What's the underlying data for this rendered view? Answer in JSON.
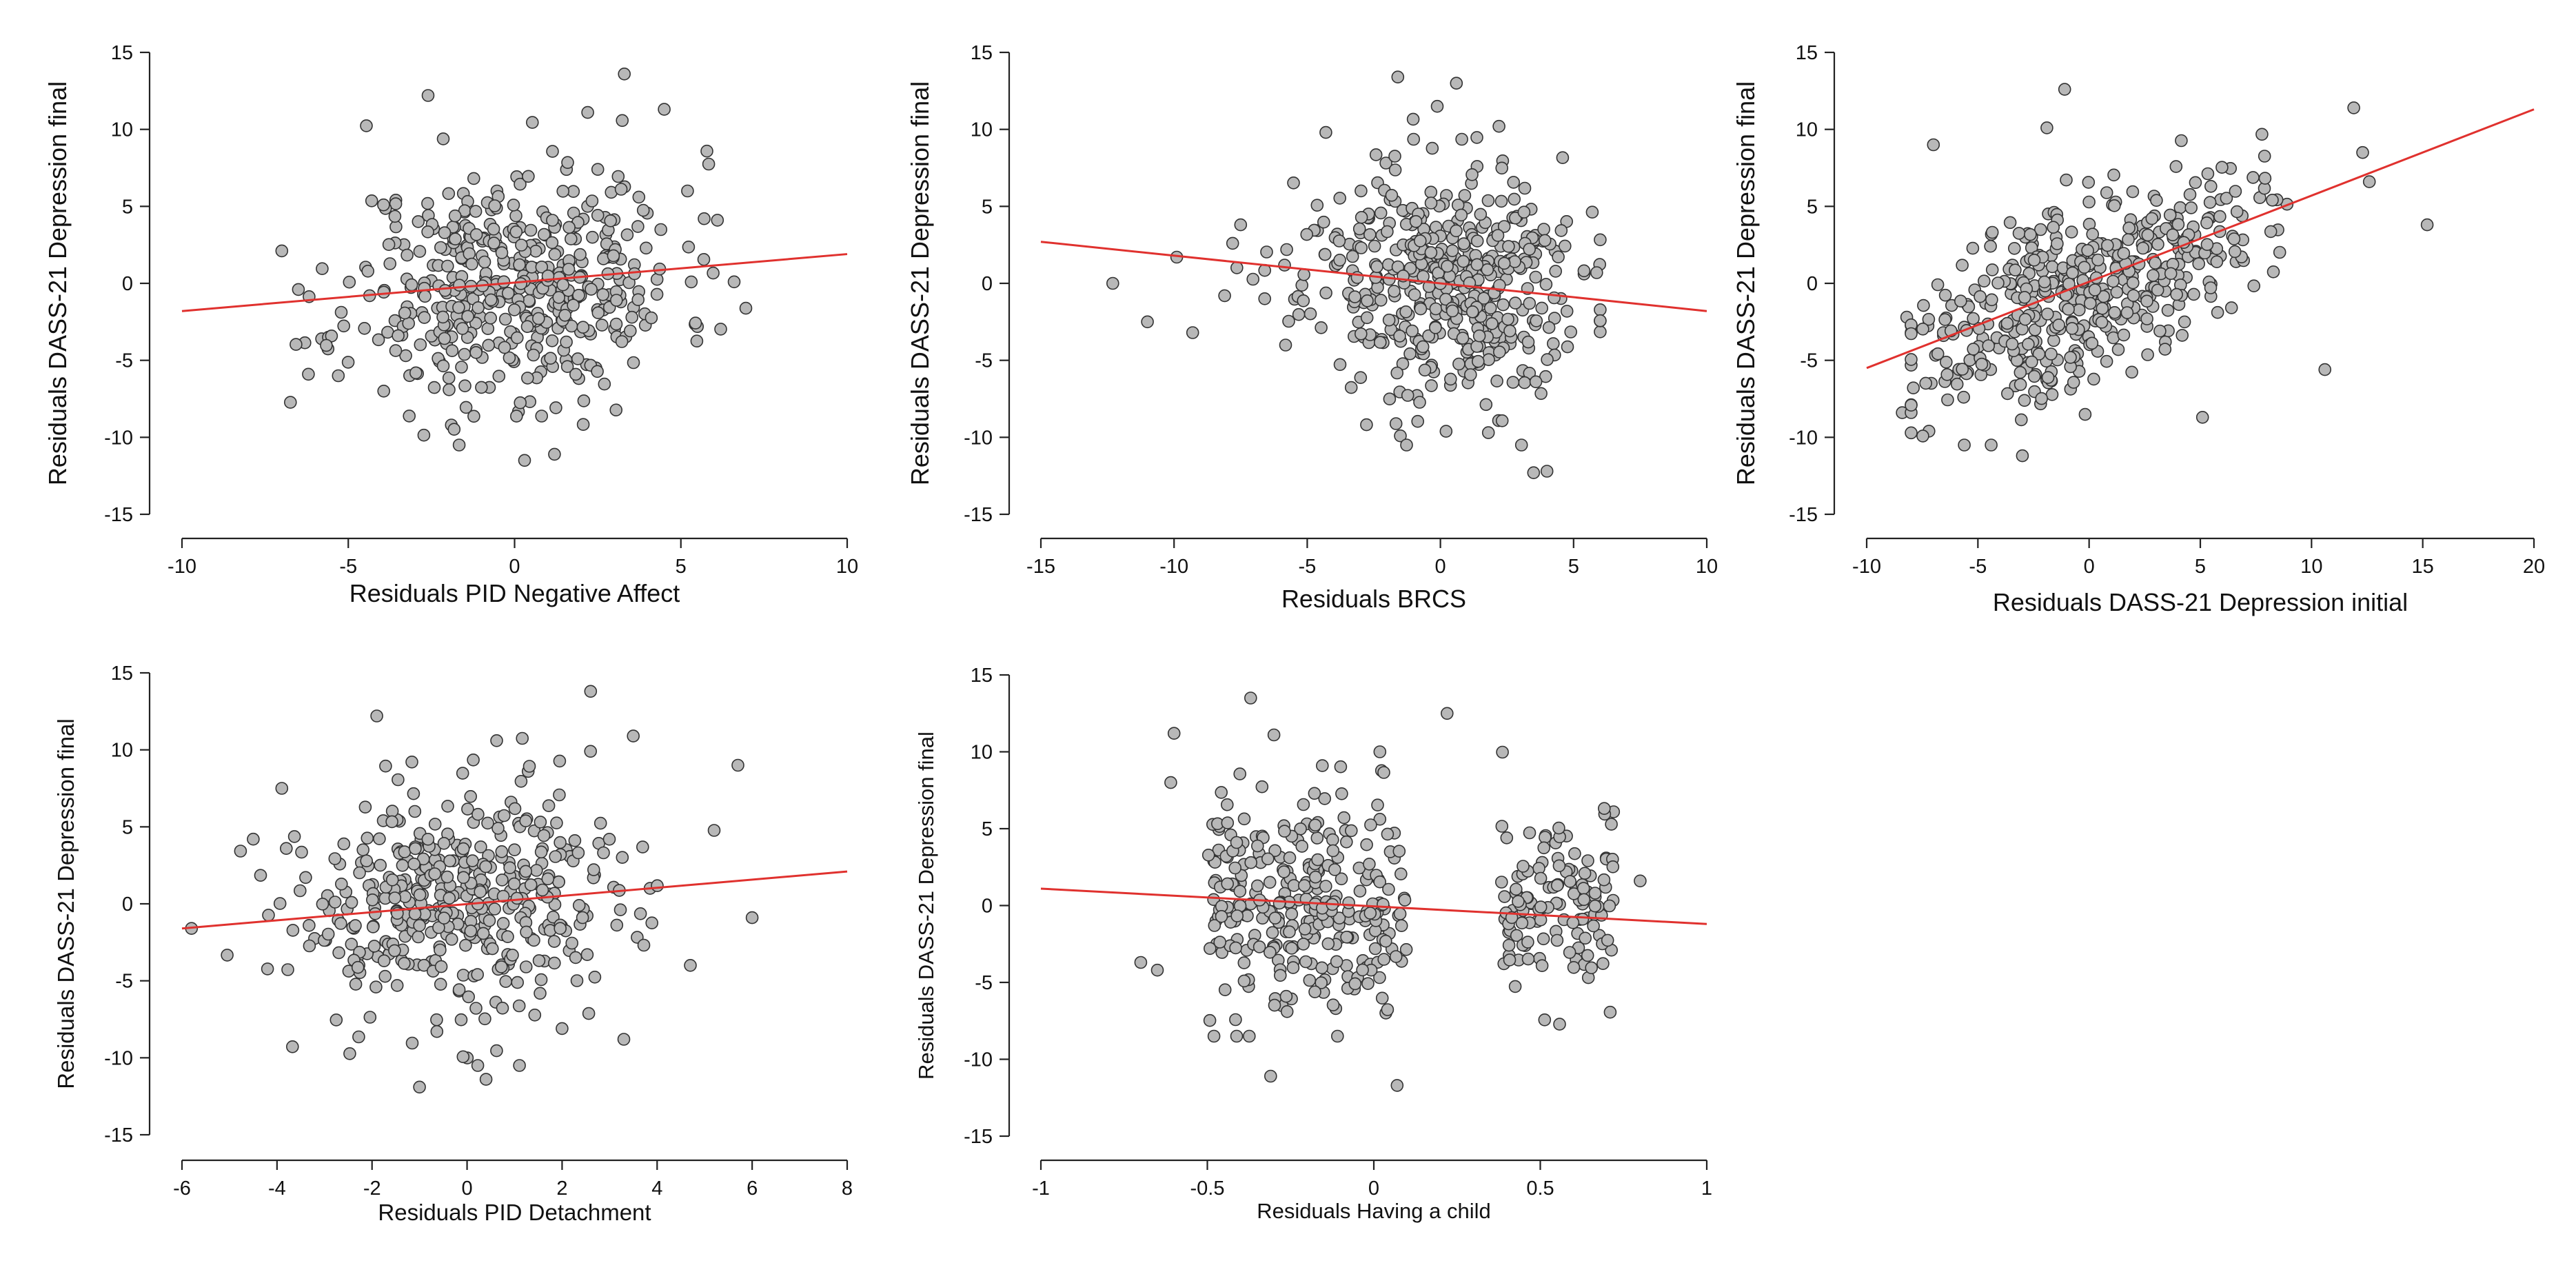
{
  "figure": {
    "layout": "2 rows x 3 columns, last cell empty"
  },
  "chart_data": [
    {
      "id": "panel1",
      "type": "scatter",
      "title": "",
      "xlabel": "Residuals PID Negative Affect",
      "ylabel": "Residuals DASS-21 Depression final",
      "xlim": [
        -10,
        10
      ],
      "ylim": [
        -15,
        15
      ],
      "xticks": [
        -10,
        -5,
        0,
        5,
        10
      ],
      "yticks": [
        -15,
        -10,
        -5,
        0,
        5,
        10,
        15
      ],
      "fit_line": {
        "x": [
          -10,
          10
        ],
        "y": [
          -1.8,
          1.9
        ],
        "color": "#e0312e"
      },
      "point_color": "#b8b8b8",
      "generated_cloud": {
        "n": 460,
        "x_mean": 0.0,
        "x_sd": 2.5,
        "y_sd": 3.8,
        "slope": 0.18,
        "intercept": 0.0,
        "x_clip": [
          -7,
          7
        ],
        "seed": 11
      },
      "points": [
        [
          -6.5,
          -0.4
        ],
        [
          -6.2,
          -5.9
        ],
        [
          -5.8,
          -3.6
        ],
        [
          -5.3,
          -6.0
        ],
        [
          -2.6,
          12.2
        ],
        [
          3.3,
          13.6
        ],
        [
          4.5,
          11.3
        ],
        [
          2.2,
          11.1
        ],
        [
          0.3,
          -11.5
        ],
        [
          1.2,
          -11.1
        ],
        [
          -1.9,
          -9.2
        ],
        [
          6.6,
          0.1
        ],
        [
          6.1,
          4.1
        ],
        [
          5.7,
          4.2
        ],
        [
          5.2,
          6.0
        ]
      ]
    },
    {
      "id": "panel2",
      "type": "scatter",
      "title": "",
      "xlabel": "Residuals BRCS",
      "ylabel": "Residuals DASS-21 Depression final",
      "xlim": [
        -15,
        10
      ],
      "ylim": [
        -15,
        15
      ],
      "xticks": [
        -15,
        -10,
        -5,
        0,
        5,
        10
      ],
      "yticks": [
        -15,
        -10,
        -5,
        0,
        5,
        10,
        15
      ],
      "fit_line": {
        "x": [
          -15,
          10
        ],
        "y": [
          2.7,
          -1.8
        ],
        "color": "#e0312e"
      },
      "point_color": "#b8b8b8",
      "generated_cloud": {
        "n": 460,
        "x_mean": 0.0,
        "x_sd": 2.6,
        "y_sd": 3.8,
        "slope": -0.18,
        "intercept": 0.0,
        "x_clip": [
          -8,
          6
        ],
        "seed": 23
      },
      "points": [
        [
          -12.3,
          0.0
        ],
        [
          -11.0,
          -2.5
        ],
        [
          -9.9,
          1.7
        ],
        [
          -9.3,
          -3.2
        ],
        [
          -8.1,
          -0.8
        ],
        [
          -7.8,
          2.6
        ],
        [
          -7.5,
          3.8
        ],
        [
          -1.6,
          13.4
        ],
        [
          0.6,
          13.0
        ],
        [
          1.8,
          -9.7
        ],
        [
          3.5,
          -12.3
        ],
        [
          4.0,
          -12.2
        ],
        [
          -4.3,
          9.8
        ],
        [
          2.2,
          10.2
        ]
      ]
    },
    {
      "id": "panel3",
      "type": "scatter",
      "title": "",
      "xlabel": "Residuals DASS-21 Depression initial",
      "ylabel": "Residuals DASS-21 Depression final",
      "xlim": [
        -10,
        20
      ],
      "ylim": [
        -15,
        15
      ],
      "xticks": [
        -10,
        -5,
        0,
        5,
        10,
        15,
        20
      ],
      "yticks": [
        -15,
        -10,
        -5,
        0,
        5,
        10,
        15
      ],
      "fit_line": {
        "x": [
          -10,
          20
        ],
        "y": [
          -5.5,
          11.3
        ],
        "color": "#e0312e"
      },
      "point_color": "#b8b8b8",
      "generated_cloud": {
        "n": 460,
        "x_mean": -0.2,
        "x_sd": 3.8,
        "y_sd": 3.0,
        "slope": 0.56,
        "intercept": 0.0,
        "x_clip": [
          -8,
          12
        ],
        "seed": 37
      },
      "points": [
        [
          -8.4,
          -8.4
        ],
        [
          -8.2,
          -2.2
        ],
        [
          -7.2,
          -9.6
        ],
        [
          -7.0,
          9.0
        ],
        [
          -3.0,
          -11.2
        ],
        [
          -1.1,
          12.6
        ],
        [
          11.9,
          11.4
        ],
        [
          12.3,
          8.5
        ],
        [
          12.6,
          6.6
        ],
        [
          15.2,
          3.8
        ],
        [
          10.6,
          -5.6
        ],
        [
          5.1,
          -8.7
        ],
        [
          -1.9,
          10.1
        ]
      ]
    },
    {
      "id": "panel4",
      "type": "scatter",
      "title": "",
      "xlabel": "Residuals PID Detachment",
      "ylabel": "Residuals DASS-21 Depression final",
      "xlim": [
        -6,
        8
      ],
      "ylim": [
        -15,
        15
      ],
      "xticks": [
        -6,
        -4,
        -2,
        0,
        2,
        4,
        6,
        8
      ],
      "yticks": [
        -15,
        -10,
        -5,
        0,
        5,
        10,
        15
      ],
      "fit_line": {
        "x": [
          -6,
          8
        ],
        "y": [
          -1.6,
          2.1
        ],
        "color": "#e0312e"
      },
      "point_color": "#b8b8b8",
      "generated_cloud": {
        "n": 420,
        "x_mean": 0.0,
        "x_sd": 1.9,
        "y_sd": 3.8,
        "slope": 0.27,
        "intercept": 0.0,
        "x_clip": [
          -5.2,
          5.8
        ],
        "seed": 53
      },
      "points": [
        [
          -5.8,
          -1.6
        ],
        [
          -4.5,
          4.2
        ],
        [
          -3.9,
          7.5
        ],
        [
          -1.9,
          12.2
        ],
        [
          2.6,
          13.8
        ],
        [
          5.7,
          9.0
        ],
        [
          6.0,
          -0.9
        ],
        [
          -1.0,
          -11.9
        ],
        [
          0.4,
          -11.4
        ],
        [
          3.3,
          -8.8
        ],
        [
          4.7,
          -4.0
        ],
        [
          2.0,
          -8.1
        ]
      ]
    },
    {
      "id": "panel5",
      "type": "scatter",
      "title": "",
      "xlabel": "Residuals Having a child",
      "ylabel": "Residuals DASS-21 Depression final",
      "xlim": [
        -1,
        1
      ],
      "ylim": [
        -15,
        15
      ],
      "xticks": [
        -1,
        -0.5,
        0,
        0.5,
        1
      ],
      "yticks": [
        -15,
        -10,
        -5,
        0,
        5,
        10,
        15
      ],
      "fit_line": {
        "x": [
          -1,
          1
        ],
        "y": [
          1.1,
          -1.2
        ],
        "color": "#e0312e"
      },
      "point_color": "#b8b8b8",
      "generated_clusters": [
        {
          "n": 170,
          "x_center": -0.33,
          "x_spread": 0.17,
          "y_sd": 3.6,
          "slope": -1.15,
          "intercept": 0.0,
          "seed": 71
        },
        {
          "n": 130,
          "x_center": -0.04,
          "x_spread": 0.14,
          "y_sd": 3.6,
          "slope": -1.15,
          "intercept": 0.0,
          "seed": 83
        },
        {
          "n": 130,
          "x_center": 0.55,
          "x_spread": 0.17,
          "y_sd": 3.4,
          "slope": -1.15,
          "intercept": 0.0,
          "seed": 97
        }
      ],
      "points": [
        [
          -0.7,
          -3.7
        ],
        [
          -0.65,
          -4.2
        ],
        [
          -0.6,
          11.2
        ],
        [
          -0.37,
          13.5
        ],
        [
          -0.31,
          -11.1
        ],
        [
          0.22,
          12.5
        ],
        [
          0.07,
          -11.7
        ],
        [
          0.8,
          1.6
        ],
        [
          0.72,
          6.1
        ],
        [
          -0.61,
          8.0
        ],
        [
          -0.3,
          11.1
        ]
      ]
    }
  ]
}
